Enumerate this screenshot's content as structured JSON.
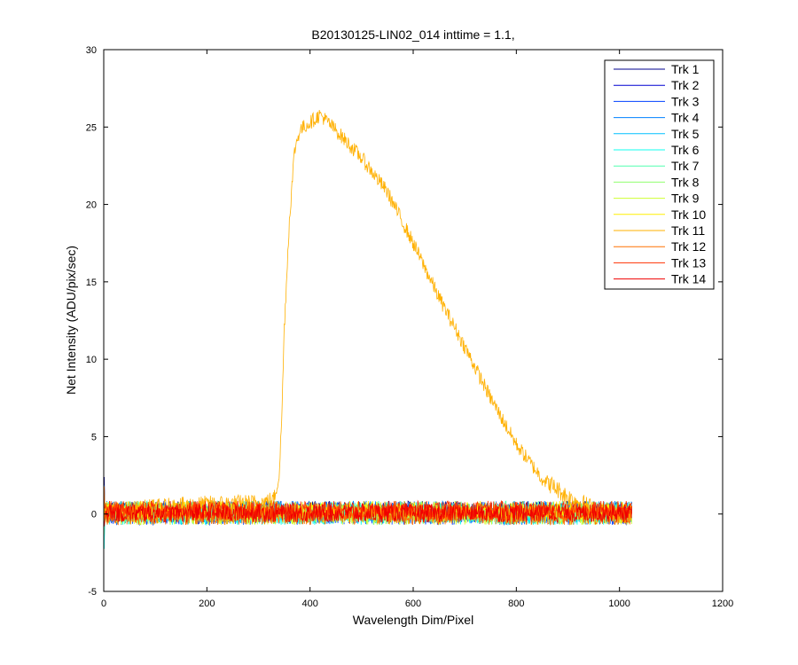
{
  "chart_data": {
    "type": "line",
    "title": "B20130125-LIN02_014 inttime = 1.1,",
    "xlabel": "Wavelength Dim/Pixel",
    "ylabel": "Net Intensity (ADU/pix/sec)",
    "xlim": [
      0,
      1200
    ],
    "ylim": [
      -5,
      30
    ],
    "xticks": [
      0,
      200,
      400,
      600,
      800,
      1000,
      1200
    ],
    "yticks": [
      -5,
      0,
      5,
      10,
      15,
      20,
      25,
      30
    ],
    "grid": false,
    "legend_position": "top-right",
    "noise_x_range": [
      0,
      1024
    ],
    "noise_amplitude": 0.6,
    "series": [
      {
        "name": "Trk 1",
        "color": "#00008f",
        "noisy": true
      },
      {
        "name": "Trk 2",
        "color": "#0000d0",
        "noisy": true
      },
      {
        "name": "Trk 3",
        "color": "#0040ff",
        "noisy": true
      },
      {
        "name": "Trk 4",
        "color": "#0080ff",
        "noisy": true
      },
      {
        "name": "Trk 5",
        "color": "#00c0ff",
        "noisy": true
      },
      {
        "name": "Trk 6",
        "color": "#10ffef",
        "noisy": true
      },
      {
        "name": "Trk 7",
        "color": "#50ffaf",
        "noisy": true
      },
      {
        "name": "Trk 8",
        "color": "#90ff6f",
        "noisy": true
      },
      {
        "name": "Trk 9",
        "color": "#cfff30",
        "noisy": true
      },
      {
        "name": "Trk 10",
        "color": "#ffef00",
        "noisy": true
      },
      {
        "name": "Trk 11",
        "color": "#ffb000",
        "noisy": true,
        "x": [
          0,
          100,
          200,
          300,
          330,
          340,
          345,
          350,
          360,
          370,
          380,
          400,
          420,
          450,
          500,
          550,
          600,
          650,
          700,
          750,
          800,
          850,
          900,
          940,
          960,
          980,
          1000,
          1024
        ],
        "y": [
          0.1,
          0.4,
          0.6,
          0.7,
          0.9,
          2.5,
          6.0,
          12.0,
          19.0,
          23.5,
          24.8,
          25.3,
          25.8,
          24.8,
          23.0,
          20.8,
          17.5,
          14.0,
          10.8,
          7.5,
          4.5,
          2.3,
          1.1,
          0.5,
          0.2,
          0.0,
          0.0,
          0.0
        ]
      },
      {
        "name": "Trk 12",
        "color": "#ff7000",
        "noisy": true
      },
      {
        "name": "Trk 13",
        "color": "#ff3000",
        "noisy": true
      },
      {
        "name": "Trk 14",
        "color": "#ef0000",
        "noisy": true
      }
    ]
  }
}
